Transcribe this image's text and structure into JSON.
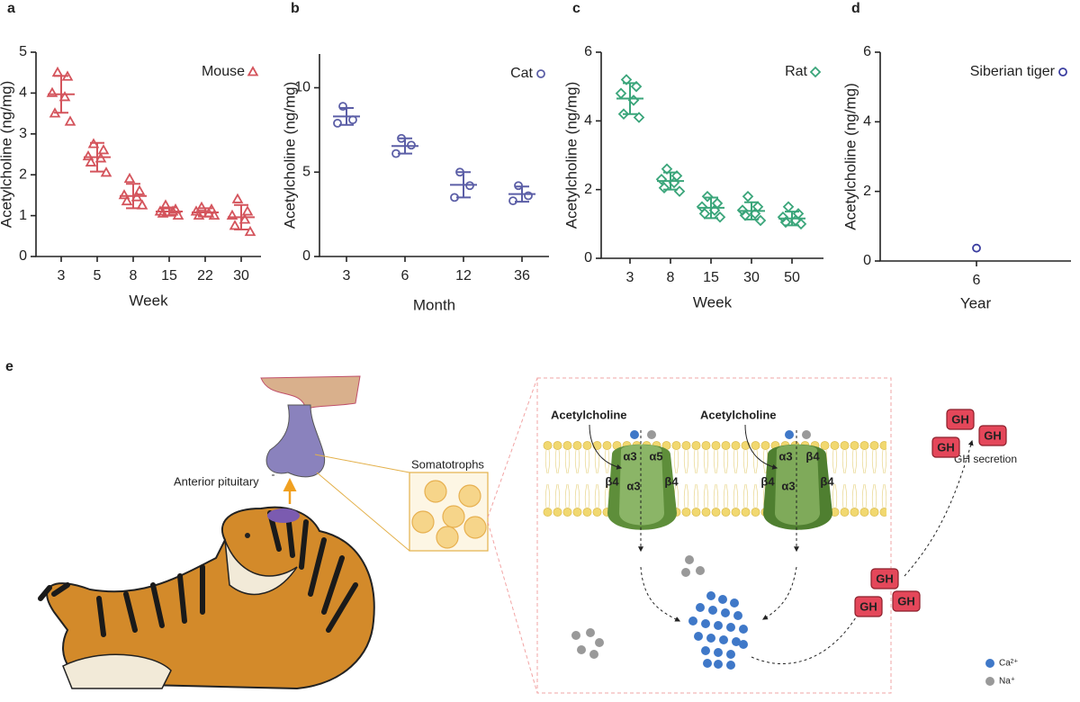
{
  "chart_data": [
    {
      "type": "scatter",
      "panel": "a",
      "ylabel": "Acetylcholine (ng/mg)",
      "xlabel": "Week",
      "categories": [
        "3",
        "5",
        "8",
        "15",
        "22",
        "30"
      ],
      "series": [
        {
          "name": "Mouse",
          "color": "#d4545c",
          "marker": "triangle",
          "points": [
            [
              4.5,
              4.4,
              4.0,
              3.9,
              3.5,
              3.3
            ],
            [
              2.75,
              2.6,
              2.45,
              2.4,
              2.3,
              2.05
            ],
            [
              1.9,
              1.6,
              1.5,
              1.45,
              1.35,
              1.25
            ],
            [
              1.25,
              1.15,
              1.1,
              1.1,
              1.05,
              1.0
            ],
            [
              1.2,
              1.15,
              1.1,
              1.05,
              1.0,
              1.0
            ],
            [
              1.4,
              1.1,
              1.0,
              0.9,
              0.75,
              0.6
            ]
          ],
          "mean": [
            3.97,
            2.43,
            1.48,
            1.1,
            1.08,
            0.96
          ],
          "sd": [
            0.45,
            0.35,
            0.3,
            0.1,
            0.1,
            0.3
          ]
        }
      ],
      "ylim": [
        0,
        5
      ],
      "yticks": [
        0,
        1,
        2,
        3,
        4,
        5
      ],
      "legend": "upper right"
    },
    {
      "type": "scatter",
      "panel": "b",
      "ylabel": "Acetylcholine (ng/mg)",
      "xlabel": "Month",
      "categories": [
        "3",
        "6",
        "12",
        "36"
      ],
      "series": [
        {
          "name": "Cat",
          "color": "#5b5ea6",
          "marker": "circle",
          "points": [
            [
              8.9,
              8.1,
              7.9
            ],
            [
              7.0,
              6.6,
              6.1
            ],
            [
              5.0,
              4.2,
              3.5
            ],
            [
              4.2,
              3.6,
              3.3
            ]
          ],
          "mean": [
            8.3,
            6.55,
            4.25,
            3.7
          ],
          "sd": [
            0.5,
            0.45,
            0.75,
            0.45
          ]
        }
      ],
      "ylim": [
        0,
        12
      ],
      "yticks": [
        0,
        5,
        10
      ],
      "legend": "upper right"
    },
    {
      "type": "scatter",
      "panel": "c",
      "ylabel": "Acetylcholine (ng/mg)",
      "xlabel": "Week",
      "categories": [
        "3",
        "8",
        "15",
        "30",
        "50"
      ],
      "series": [
        {
          "name": "Rat",
          "color": "#3aa57a",
          "marker": "diamond",
          "points": [
            [
              5.2,
              5.0,
              4.8,
              4.6,
              4.2,
              4.1
            ],
            [
              2.6,
              2.4,
              2.3,
              2.2,
              2.05,
              1.95
            ],
            [
              1.8,
              1.6,
              1.5,
              1.4,
              1.3,
              1.2
            ],
            [
              1.8,
              1.5,
              1.4,
              1.3,
              1.25,
              1.1
            ],
            [
              1.5,
              1.3,
              1.2,
              1.1,
              1.05,
              1.0
            ]
          ],
          "mean": [
            4.65,
            2.25,
            1.47,
            1.38,
            1.16
          ],
          "sd": [
            0.45,
            0.25,
            0.3,
            0.25,
            0.2
          ]
        }
      ],
      "ylim": [
        0,
        6
      ],
      "yticks": [
        0,
        2,
        4,
        6
      ],
      "legend": "upper right"
    },
    {
      "type": "scatter",
      "panel": "d",
      "ylabel": "Acetylcholine (ng/mg)",
      "xlabel": "Year",
      "categories": [
        "6"
      ],
      "series": [
        {
          "name": "Siberian tiger",
          "color": "#3b3ea0",
          "marker": "circle",
          "points": [
            [
              0.37
            ]
          ]
        }
      ],
      "ylim": [
        0,
        6
      ],
      "yticks": [
        0,
        2,
        4,
        6
      ],
      "legend": "upper right"
    }
  ],
  "panel_e": {
    "label": "e",
    "pituitary": "Anterior pituitary",
    "somatotrophs": "Somatotrophs",
    "agonist": [
      "Acetylcholine",
      "Acetylcholine"
    ],
    "receptor1": [
      "α3",
      "α5",
      "β4",
      "α3",
      "β4"
    ],
    "receptor2": [
      "α3",
      "β4",
      "β4",
      "α3",
      "β4"
    ],
    "secretion": "GH secretion",
    "gh": [
      "GH",
      "GH",
      "GH",
      "GH",
      "GH",
      "GH"
    ],
    "ions": [
      "Ca²⁺",
      "Na⁺"
    ]
  }
}
